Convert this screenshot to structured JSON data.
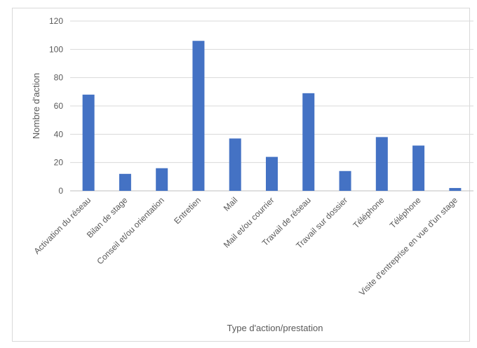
{
  "chart_data": {
    "type": "bar",
    "categories": [
      "Activation du réseau",
      "Bilan de stage",
      "Conseil et/ou orientation",
      "Entretien",
      "Mail",
      "Mail et/ou courrier",
      "Travail de réseau",
      "Travail sur dossier",
      "Téléphone",
      "Téléphone",
      "Visite d'entreprise  en vue d'un stage"
    ],
    "values": [
      68,
      12,
      16,
      106,
      37,
      24,
      69,
      14,
      38,
      32,
      2
    ],
    "xlabel": "Type d'action/prestation",
    "ylabel": "Nombre d'action",
    "ylim": [
      0,
      120
    ],
    "yticks": [
      0,
      20,
      40,
      60,
      80,
      100,
      120
    ],
    "grid": true,
    "legend": "none",
    "bar_color": "#4472C4",
    "grid_color": "#d9d9d9"
  }
}
